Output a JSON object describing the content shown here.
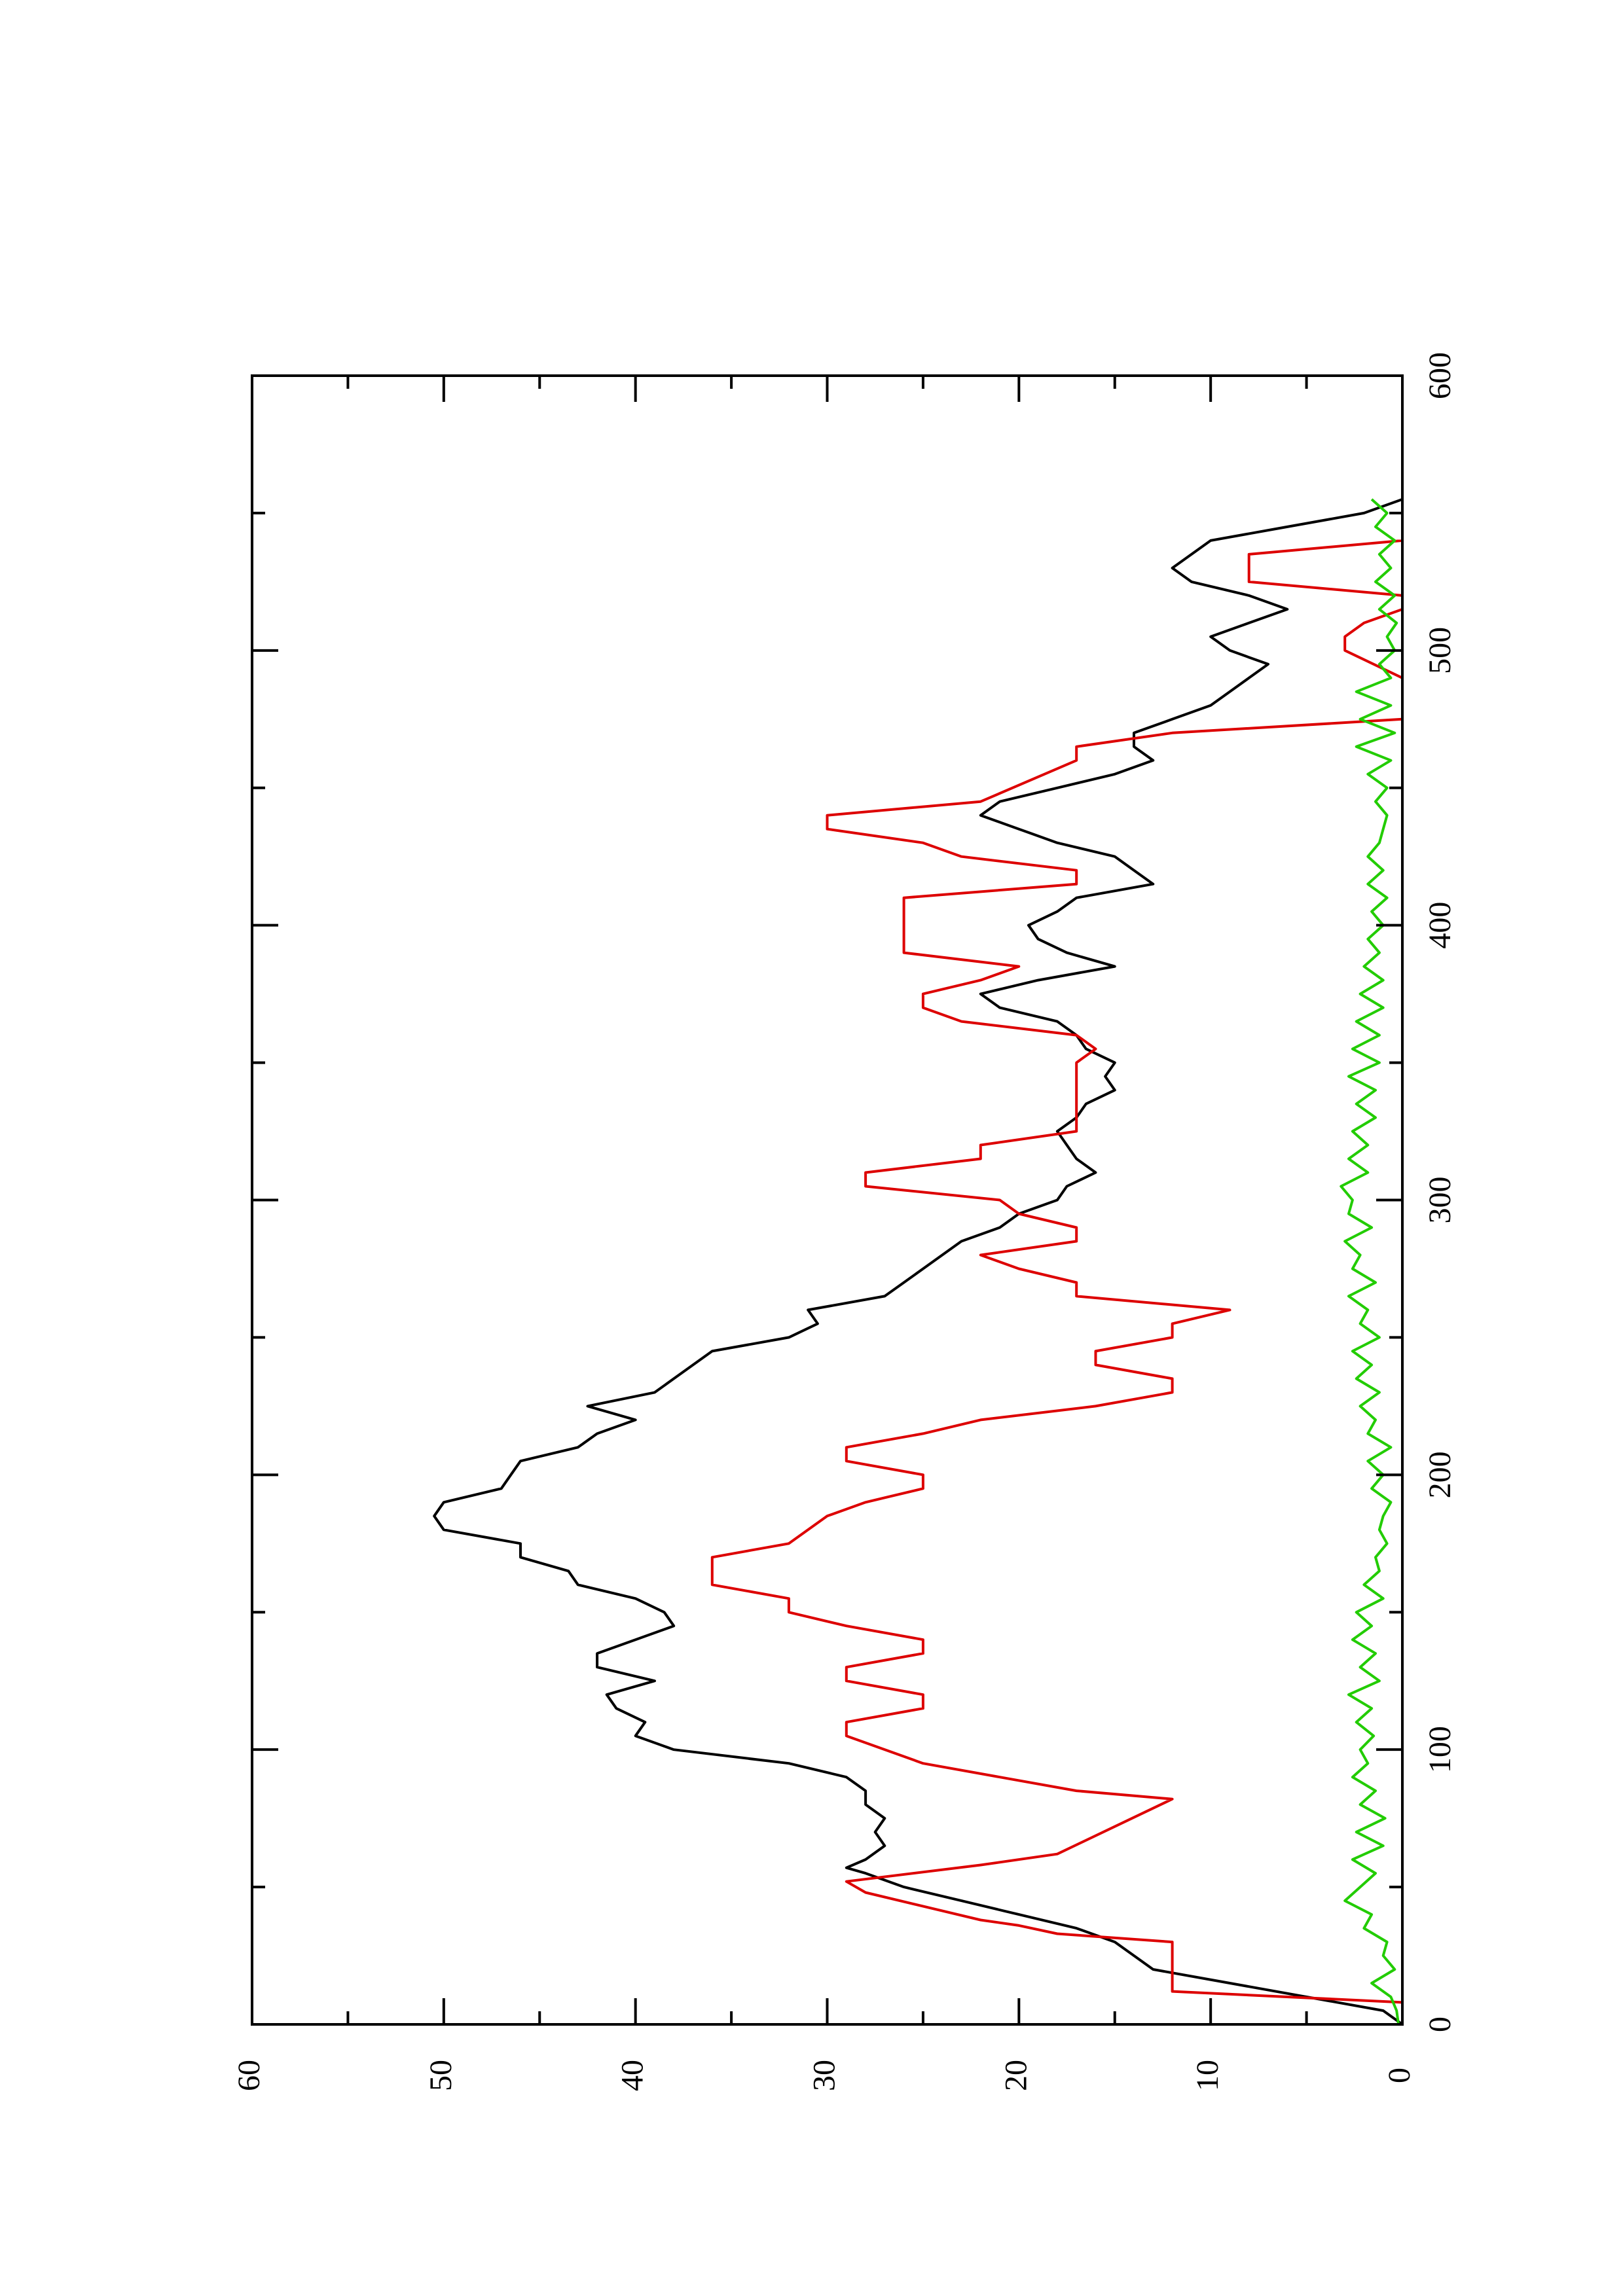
{
  "chart_data": {
    "type": "line",
    "title": "",
    "xlabel": "",
    "ylabel": "",
    "orientation": "rotated-90-clockwise",
    "xlim": [
      0,
      600
    ],
    "ylim": [
      0,
      60
    ],
    "x_ticks_major": [
      0,
      100,
      200,
      300,
      400,
      500,
      600
    ],
    "x_tick_labels": [
      "0",
      "100",
      "200",
      "300",
      "400",
      "500",
      "600"
    ],
    "x_ticks_minor": [
      50,
      150,
      250,
      350,
      450,
      550
    ],
    "y_ticks_major": [
      0,
      10,
      20,
      30,
      40,
      50,
      60
    ],
    "y_tick_labels": [
      "0",
      "10",
      "20",
      "30",
      "40",
      "50",
      "60"
    ],
    "y_ticks_minor": [
      5,
      15,
      25,
      35,
      45,
      55
    ],
    "grid": false,
    "legend": "none",
    "series": [
      {
        "color": "#000000",
        "points": [
          [
            0,
            0
          ],
          [
            5,
            1
          ],
          [
            10,
            5
          ],
          [
            15,
            9
          ],
          [
            20,
            13
          ],
          [
            25,
            14
          ],
          [
            30,
            15
          ],
          [
            35,
            17
          ],
          [
            40,
            20
          ],
          [
            45,
            23
          ],
          [
            50,
            26
          ],
          [
            55,
            28
          ],
          [
            57,
            29
          ],
          [
            60,
            28
          ],
          [
            65,
            27
          ],
          [
            70,
            27.5
          ],
          [
            75,
            27
          ],
          [
            80,
            28
          ],
          [
            85,
            28
          ],
          [
            90,
            29
          ],
          [
            95,
            32
          ],
          [
            100,
            38
          ],
          [
            105,
            40
          ],
          [
            110,
            39.5
          ],
          [
            115,
            41
          ],
          [
            120,
            41.5
          ],
          [
            125,
            39
          ],
          [
            130,
            42
          ],
          [
            135,
            42
          ],
          [
            140,
            40
          ],
          [
            145,
            38
          ],
          [
            150,
            38.5
          ],
          [
            155,
            40
          ],
          [
            160,
            43
          ],
          [
            165,
            43.5
          ],
          [
            170,
            46
          ],
          [
            175,
            46
          ],
          [
            180,
            50
          ],
          [
            185,
            50.5
          ],
          [
            190,
            50
          ],
          [
            195,
            47
          ],
          [
            200,
            46.5
          ],
          [
            205,
            46
          ],
          [
            210,
            43
          ],
          [
            215,
            42
          ],
          [
            220,
            40
          ],
          [
            225,
            42.5
          ],
          [
            230,
            39
          ],
          [
            235,
            38
          ],
          [
            240,
            37
          ],
          [
            245,
            36
          ],
          [
            250,
            32
          ],
          [
            255,
            30.5
          ],
          [
            260,
            31
          ],
          [
            265,
            27
          ],
          [
            270,
            26
          ],
          [
            275,
            25
          ],
          [
            280,
            24
          ],
          [
            285,
            23
          ],
          [
            290,
            21
          ],
          [
            295,
            20
          ],
          [
            300,
            18
          ],
          [
            305,
            17.5
          ],
          [
            310,
            16
          ],
          [
            315,
            17
          ],
          [
            320,
            17.5
          ],
          [
            325,
            18
          ],
          [
            330,
            17
          ],
          [
            335,
            16.5
          ],
          [
            340,
            15
          ],
          [
            345,
            15.5
          ],
          [
            350,
            15
          ],
          [
            355,
            16.5
          ],
          [
            360,
            17
          ],
          [
            365,
            18
          ],
          [
            370,
            21
          ],
          [
            375,
            22
          ],
          [
            380,
            19
          ],
          [
            385,
            15
          ],
          [
            390,
            17.5
          ],
          [
            395,
            19
          ],
          [
            400,
            19.5
          ],
          [
            405,
            18
          ],
          [
            410,
            17
          ],
          [
            415,
            13
          ],
          [
            420,
            14
          ],
          [
            425,
            15
          ],
          [
            430,
            18
          ],
          [
            435,
            20
          ],
          [
            440,
            22
          ],
          [
            445,
            21
          ],
          [
            450,
            18
          ],
          [
            455,
            15
          ],
          [
            460,
            13
          ],
          [
            465,
            14
          ],
          [
            470,
            14
          ],
          [
            475,
            12
          ],
          [
            480,
            10
          ],
          [
            485,
            9
          ],
          [
            490,
            8
          ],
          [
            495,
            7
          ],
          [
            500,
            9
          ],
          [
            505,
            10
          ],
          [
            510,
            8
          ],
          [
            515,
            6
          ],
          [
            520,
            8
          ],
          [
            525,
            11
          ],
          [
            530,
            12
          ],
          [
            535,
            11
          ],
          [
            540,
            10
          ],
          [
            545,
            6
          ],
          [
            550,
            2
          ],
          [
            555,
            0
          ]
        ]
      },
      {
        "color": "#dd0000",
        "points": [
          [
            0,
            0
          ],
          [
            8,
            0
          ],
          [
            12,
            12
          ],
          [
            30,
            12
          ],
          [
            33,
            18
          ],
          [
            36,
            20
          ],
          [
            38,
            22
          ],
          [
            48,
            28
          ],
          [
            52,
            29
          ],
          [
            58,
            22
          ],
          [
            62,
            18
          ],
          [
            82,
            12
          ],
          [
            85,
            17
          ],
          [
            90,
            21
          ],
          [
            95,
            25
          ],
          [
            105,
            29
          ],
          [
            110,
            29
          ],
          [
            115,
            25
          ],
          [
            120,
            25
          ],
          [
            125,
            29
          ],
          [
            130,
            29
          ],
          [
            135,
            25
          ],
          [
            140,
            25
          ],
          [
            145,
            29
          ],
          [
            150,
            32
          ],
          [
            155,
            32
          ],
          [
            160,
            36
          ],
          [
            170,
            36
          ],
          [
            175,
            32
          ],
          [
            185,
            30
          ],
          [
            190,
            28
          ],
          [
            195,
            25
          ],
          [
            200,
            25
          ],
          [
            205,
            29
          ],
          [
            210,
            29
          ],
          [
            215,
            25
          ],
          [
            220,
            22
          ],
          [
            225,
            16
          ],
          [
            230,
            12
          ],
          [
            235,
            12
          ],
          [
            240,
            16
          ],
          [
            245,
            16
          ],
          [
            250,
            12
          ],
          [
            255,
            12
          ],
          [
            260,
            9
          ],
          [
            265,
            17
          ],
          [
            270,
            17
          ],
          [
            275,
            20
          ],
          [
            280,
            22
          ],
          [
            285,
            17
          ],
          [
            290,
            17
          ],
          [
            295,
            20
          ],
          [
            300,
            21
          ],
          [
            305,
            28
          ],
          [
            310,
            28
          ],
          [
            315,
            22
          ],
          [
            320,
            22
          ],
          [
            325,
            17
          ],
          [
            330,
            17
          ],
          [
            340,
            17
          ],
          [
            350,
            17
          ],
          [
            355,
            16
          ],
          [
            360,
            17
          ],
          [
            365,
            23
          ],
          [
            370,
            25
          ],
          [
            375,
            25
          ],
          [
            380,
            22
          ],
          [
            385,
            20
          ],
          [
            390,
            26
          ],
          [
            395,
            26
          ],
          [
            400,
            26
          ],
          [
            410,
            26
          ],
          [
            415,
            17
          ],
          [
            420,
            17
          ],
          [
            425,
            23
          ],
          [
            430,
            25
          ],
          [
            435,
            30
          ],
          [
            440,
            30
          ],
          [
            445,
            22
          ],
          [
            460,
            17
          ],
          [
            465,
            17
          ],
          [
            470,
            12
          ],
          [
            475,
            0
          ],
          [
            490,
            0
          ],
          [
            500,
            3
          ],
          [
            505,
            3
          ],
          [
            510,
            2
          ],
          [
            515,
            0
          ],
          [
            520,
            0
          ],
          [
            525,
            8
          ],
          [
            530,
            8
          ],
          [
            535,
            8
          ],
          [
            540,
            0
          ],
          [
            550,
            0
          ]
        ]
      },
      {
        "color": "#22cc00",
        "points": [
          [
            0,
            0.2
          ],
          [
            5,
            0.3
          ],
          [
            10,
            0.6
          ],
          [
            15,
            1.6
          ],
          [
            20,
            0.4
          ],
          [
            25,
            1
          ],
          [
            30,
            0.8
          ],
          [
            35,
            2
          ],
          [
            40,
            1.6
          ],
          [
            45,
            3
          ],
          [
            50,
            2.2
          ],
          [
            55,
            1.4
          ],
          [
            60,
            2.6
          ],
          [
            65,
            1
          ],
          [
            70,
            2.4
          ],
          [
            75,
            0.9
          ],
          [
            80,
            2.2
          ],
          [
            85,
            1.4
          ],
          [
            90,
            2.6
          ],
          [
            95,
            1.8
          ],
          [
            100,
            2.2
          ],
          [
            105,
            1.5
          ],
          [
            110,
            2.4
          ],
          [
            115,
            1.6
          ],
          [
            120,
            2.8
          ],
          [
            125,
            1.2
          ],
          [
            130,
            2.2
          ],
          [
            135,
            1.4
          ],
          [
            140,
            2.6
          ],
          [
            145,
            1.6
          ],
          [
            150,
            2.4
          ],
          [
            155,
            1
          ],
          [
            160,
            2
          ],
          [
            165,
            1.2
          ],
          [
            170,
            1.4
          ],
          [
            175,
            0.8
          ],
          [
            180,
            1.2
          ],
          [
            185,
            1
          ],
          [
            190,
            0.6
          ],
          [
            195,
            1.6
          ],
          [
            200,
            1
          ],
          [
            205,
            1.8
          ],
          [
            210,
            0.6
          ],
          [
            215,
            1.8
          ],
          [
            220,
            1.4
          ],
          [
            225,
            2.2
          ],
          [
            230,
            1.2
          ],
          [
            235,
            2.4
          ],
          [
            240,
            1.6
          ],
          [
            245,
            2.6
          ],
          [
            250,
            1.2
          ],
          [
            255,
            2.2
          ],
          [
            260,
            1.8
          ],
          [
            265,
            2.8
          ],
          [
            270,
            1.4
          ],
          [
            275,
            2.6
          ],
          [
            280,
            2.2
          ],
          [
            285,
            3
          ],
          [
            290,
            1.6
          ],
          [
            295,
            2.8
          ],
          [
            300,
            2.6
          ],
          [
            305,
            3.2
          ],
          [
            310,
            1.8
          ],
          [
            315,
            2.8
          ],
          [
            320,
            1.8
          ],
          [
            325,
            2.6
          ],
          [
            330,
            1.4
          ],
          [
            335,
            2.4
          ],
          [
            340,
            1.4
          ],
          [
            345,
            2.8
          ],
          [
            350,
            1.2
          ],
          [
            355,
            2.6
          ],
          [
            360,
            1.2
          ],
          [
            365,
            2.4
          ],
          [
            370,
            1
          ],
          [
            375,
            2.2
          ],
          [
            380,
            1
          ],
          [
            385,
            2
          ],
          [
            390,
            1.2
          ],
          [
            395,
            1.8
          ],
          [
            400,
            1
          ],
          [
            405,
            1.6
          ],
          [
            410,
            0.8
          ],
          [
            415,
            1.8
          ],
          [
            420,
            1
          ],
          [
            425,
            1.8
          ],
          [
            430,
            1.2
          ],
          [
            435,
            1
          ],
          [
            440,
            0.8
          ],
          [
            445,
            1.4
          ],
          [
            450,
            0.8
          ],
          [
            455,
            1.8
          ],
          [
            460,
            0.6
          ],
          [
            465,
            2.4
          ],
          [
            470,
            0.4
          ],
          [
            475,
            2.2
          ],
          [
            480,
            0.6
          ],
          [
            485,
            2.4
          ],
          [
            490,
            0.6
          ],
          [
            495,
            1.2
          ],
          [
            500,
            0.4
          ],
          [
            505,
            0.8
          ],
          [
            510,
            0.3
          ],
          [
            515,
            1.2
          ],
          [
            520,
            0.4
          ],
          [
            525,
            1.4
          ],
          [
            530,
            0.6
          ],
          [
            535,
            1.2
          ],
          [
            540,
            0.4
          ],
          [
            545,
            1.4
          ],
          [
            550,
            0.8
          ],
          [
            555,
            1.6
          ]
        ]
      }
    ]
  }
}
